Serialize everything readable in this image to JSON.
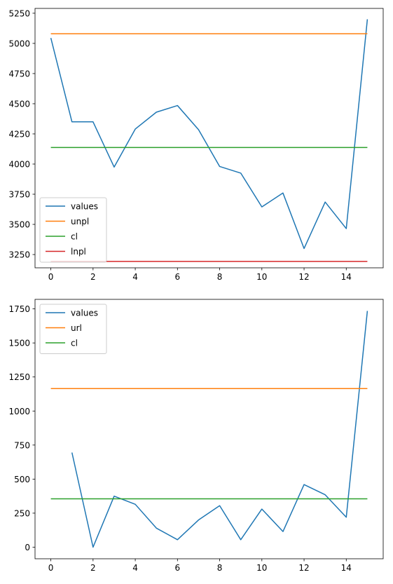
{
  "chart_data": [
    {
      "type": "line",
      "x": [
        0,
        1,
        2,
        3,
        4,
        5,
        6,
        7,
        8,
        9,
        10,
        11,
        12,
        13,
        14,
        15
      ],
      "xlim": [
        -0.75,
        15.75
      ],
      "ylim": [
        3140,
        5290
      ],
      "x_ticks": [
        0,
        2,
        4,
        6,
        8,
        10,
        12,
        14
      ],
      "y_ticks": [
        3250,
        3500,
        3750,
        4000,
        4250,
        4500,
        4750,
        5000,
        5250
      ],
      "grid": false,
      "legend_position": "lower-left",
      "series": [
        {
          "name": "values",
          "color": "#1f77b4",
          "values": [
            5045,
            4350,
            4350,
            3975,
            4290,
            4430,
            4485,
            4285,
            3980,
            3925,
            3645,
            3760,
            3300,
            3685,
            3465,
            5200
          ]
        },
        {
          "name": "unpl",
          "color": "#ff7f0e",
          "values": [
            5080,
            5080,
            5080,
            5080,
            5080,
            5080,
            5080,
            5080,
            5080,
            5080,
            5080,
            5080,
            5080,
            5080,
            5080,
            5080
          ]
        },
        {
          "name": "cl",
          "color": "#2ca02c",
          "values": [
            4137,
            4137,
            4137,
            4137,
            4137,
            4137,
            4137,
            4137,
            4137,
            4137,
            4137,
            4137,
            4137,
            4137,
            4137,
            4137
          ]
        },
        {
          "name": "lnpl",
          "color": "#d62728",
          "values": [
            3193,
            3193,
            3193,
            3193,
            3193,
            3193,
            3193,
            3193,
            3193,
            3193,
            3193,
            3193,
            3193,
            3193,
            3193,
            3193
          ]
        }
      ]
    },
    {
      "type": "line",
      "x": [
        0,
        1,
        2,
        3,
        4,
        5,
        6,
        7,
        8,
        9,
        10,
        11,
        12,
        13,
        14,
        15
      ],
      "xlim": [
        -0.75,
        15.75
      ],
      "ylim": [
        -85,
        1820
      ],
      "x_ticks": [
        0,
        2,
        4,
        6,
        8,
        10,
        12,
        14
      ],
      "y_ticks": [
        0,
        250,
        500,
        750,
        1000,
        1250,
        1500,
        1750
      ],
      "grid": false,
      "legend_position": "upper-left",
      "series": [
        {
          "name": "values",
          "color": "#1f77b4",
          "values": [
            null,
            695,
            0,
            375,
            315,
            140,
            55,
            200,
            305,
            55,
            280,
            115,
            460,
            385,
            220,
            1735
          ]
        },
        {
          "name": "url",
          "color": "#ff7f0e",
          "values": [
            1165,
            1165,
            1165,
            1165,
            1165,
            1165,
            1165,
            1165,
            1165,
            1165,
            1165,
            1165,
            1165,
            1165,
            1165,
            1165
          ]
        },
        {
          "name": "cl",
          "color": "#2ca02c",
          "values": [
            355,
            355,
            355,
            355,
            355,
            355,
            355,
            355,
            355,
            355,
            355,
            355,
            355,
            355,
            355,
            355
          ]
        }
      ]
    }
  ]
}
